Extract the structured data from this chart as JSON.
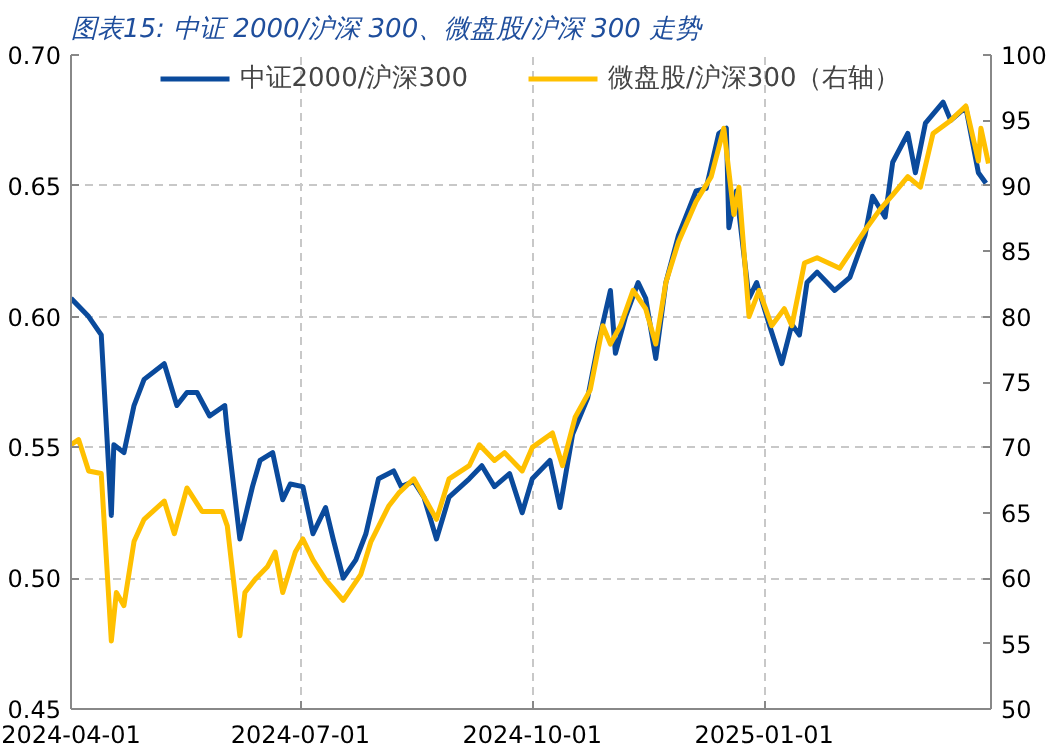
{
  "chart_data": {
    "type": "line",
    "title": "图表15:  中证 2000/沪深 300、微盘股/沪深 300 走势",
    "xlim": [
      "2024-04-01",
      "2025-04-01"
    ],
    "xticks": [
      "2024-04-01",
      "2024-07-01",
      "2024-10-01",
      "2025-01-01"
    ],
    "ylim": [
      0.45,
      0.7
    ],
    "yticks": [
      {
        "value": 0.45,
        "label": "0.45"
      },
      {
        "value": 0.5,
        "label": "0.50"
      },
      {
        "value": 0.55,
        "label": "0.55"
      },
      {
        "value": 0.6,
        "label": "0.60"
      },
      {
        "value": 0.65,
        "label": "0.65"
      },
      {
        "value": 0.7,
        "label": "0.70"
      }
    ],
    "y2lim": [
      50,
      100
    ],
    "y2ticks": [
      50,
      55,
      60,
      65,
      70,
      75,
      80,
      85,
      90,
      95,
      100
    ],
    "grid": true,
    "legend": "top",
    "line_style": "solid",
    "series": [
      {
        "name": "中证2000/沪深300",
        "color": "#0a4a9c",
        "x": [
          "2024-04-01",
          "2024-04-08",
          "2024-04-13",
          "2024-04-17",
          "2024-04-18",
          "2024-04-22",
          "2024-04-26",
          "2024-04-30",
          "2024-05-08",
          "2024-05-13",
          "2024-05-17",
          "2024-05-21",
          "2024-05-26",
          "2024-06-01",
          "2024-06-02",
          "2024-06-07",
          "2024-06-12",
          "2024-06-15",
          "2024-06-20",
          "2024-06-24",
          "2024-06-27",
          "2024-07-02",
          "2024-07-06",
          "2024-07-11",
          "2024-07-14",
          "2024-07-18",
          "2024-07-23",
          "2024-07-27",
          "2024-08-01",
          "2024-08-07",
          "2024-08-10",
          "2024-08-15",
          "2024-08-19",
          "2024-08-24",
          "2024-08-29",
          "2024-09-06",
          "2024-09-11",
          "2024-09-16",
          "2024-09-22",
          "2024-09-27",
          "2024-10-01",
          "2024-10-08",
          "2024-10-12",
          "2024-10-17",
          "2024-10-23",
          "2024-10-27",
          "2024-11-01",
          "2024-11-03",
          "2024-11-07",
          "2024-11-12",
          "2024-11-15",
          "2024-11-19",
          "2024-11-23",
          "2024-11-28",
          "2024-12-05",
          "2024-12-09",
          "2024-12-14",
          "2024-12-17",
          "2024-12-18",
          "2024-12-21",
          "2024-12-26",
          "2024-12-29",
          "2025-01-03",
          "2025-01-08",
          "2025-01-12",
          "2025-01-15",
          "2025-01-18",
          "2025-01-22",
          "2025-01-29",
          "2025-02-04",
          "2025-02-10",
          "2025-02-13",
          "2025-02-18",
          "2025-02-21",
          "2025-02-27",
          "2025-03-02",
          "2025-03-06",
          "2025-03-13",
          "2025-03-16",
          "2025-03-22",
          "2025-03-27",
          "2025-03-30"
        ],
        "values": [
          0.607,
          0.6,
          0.593,
          0.524,
          0.551,
          0.548,
          0.566,
          0.576,
          0.582,
          0.566,
          0.571,
          0.571,
          0.562,
          0.566,
          0.556,
          0.515,
          0.535,
          0.545,
          0.548,
          0.53,
          0.536,
          0.535,
          0.517,
          0.527,
          0.515,
          0.5,
          0.507,
          0.517,
          0.538,
          0.541,
          0.535,
          0.537,
          0.531,
          0.515,
          0.531,
          0.538,
          0.543,
          0.535,
          0.54,
          0.525,
          0.538,
          0.545,
          0.527,
          0.555,
          0.569,
          0.589,
          0.61,
          0.586,
          0.6,
          0.613,
          0.607,
          0.584,
          0.613,
          0.631,
          0.648,
          0.649,
          0.67,
          0.672,
          0.634,
          0.648,
          0.607,
          0.613,
          0.597,
          0.582,
          0.597,
          0.593,
          0.613,
          0.617,
          0.61,
          0.615,
          0.631,
          0.646,
          0.638,
          0.659,
          0.67,
          0.655,
          0.674,
          0.682,
          0.675,
          0.68,
          0.655,
          0.651
        ]
      },
      {
        "name": "微盘股/沪深300（右轴）",
        "color": "#ffc000",
        "axis": "y2",
        "x": [
          "2024-04-01",
          "2024-04-04",
          "2024-04-08",
          "2024-04-13",
          "2024-04-17",
          "2024-04-19",
          "2024-04-22",
          "2024-04-26",
          "2024-04-30",
          "2024-05-08",
          "2024-05-12",
          "2024-05-17",
          "2024-05-23",
          "2024-05-31",
          "2024-06-02",
          "2024-06-07",
          "2024-06-09",
          "2024-06-13",
          "2024-06-18",
          "2024-06-21",
          "2024-06-24",
          "2024-06-29",
          "2024-07-02",
          "2024-07-06",
          "2024-07-11",
          "2024-07-18",
          "2024-07-25",
          "2024-07-29",
          "2024-08-05",
          "2024-08-09",
          "2024-08-15",
          "2024-08-24",
          "2024-08-29",
          "2024-09-06",
          "2024-09-10",
          "2024-09-16",
          "2024-09-20",
          "2024-09-27",
          "2024-10-01",
          "2024-10-09",
          "2024-10-13",
          "2024-10-18",
          "2024-10-24",
          "2024-10-29",
          "2024-11-01",
          "2024-11-05",
          "2024-11-10",
          "2024-11-15",
          "2024-11-19",
          "2024-11-23",
          "2024-11-28",
          "2024-12-05",
          "2024-12-11",
          "2024-12-16",
          "2024-12-20",
          "2024-12-22",
          "2024-12-26",
          "2024-12-30",
          "2025-01-04",
          "2025-01-09",
          "2025-01-12",
          "2025-01-17",
          "2025-01-22",
          "2025-01-31",
          "2025-02-10",
          "2025-02-16",
          "2025-02-21",
          "2025-02-27",
          "2025-03-04",
          "2025-03-09",
          "2025-03-16",
          "2025-03-22",
          "2025-03-27",
          "2025-03-28",
          "2025-03-31"
        ],
        "values": [
          70.2,
          70.6,
          68.2,
          68.0,
          55.2,
          58.9,
          57.9,
          62.8,
          64.5,
          65.9,
          63.4,
          66.9,
          65.1,
          65.1,
          64.0,
          55.6,
          58.9,
          59.9,
          60.9,
          62.0,
          58.9,
          62.0,
          63.0,
          61.4,
          59.9,
          58.3,
          60.3,
          62.8,
          65.5,
          66.5,
          67.6,
          64.5,
          67.6,
          68.6,
          70.2,
          69.0,
          69.6,
          68.2,
          70.0,
          71.1,
          68.6,
          72.3,
          74.4,
          79.3,
          77.9,
          79.3,
          82.0,
          80.6,
          77.9,
          82.6,
          85.7,
          88.8,
          90.7,
          94.4,
          87.8,
          89.9,
          80.0,
          82.0,
          79.3,
          80.6,
          79.3,
          84.1,
          84.5,
          83.7,
          86.6,
          88.2,
          89.3,
          90.7,
          89.9,
          94.0,
          95.0,
          96.1,
          91.9,
          94.4,
          91.7
        ]
      }
    ]
  }
}
